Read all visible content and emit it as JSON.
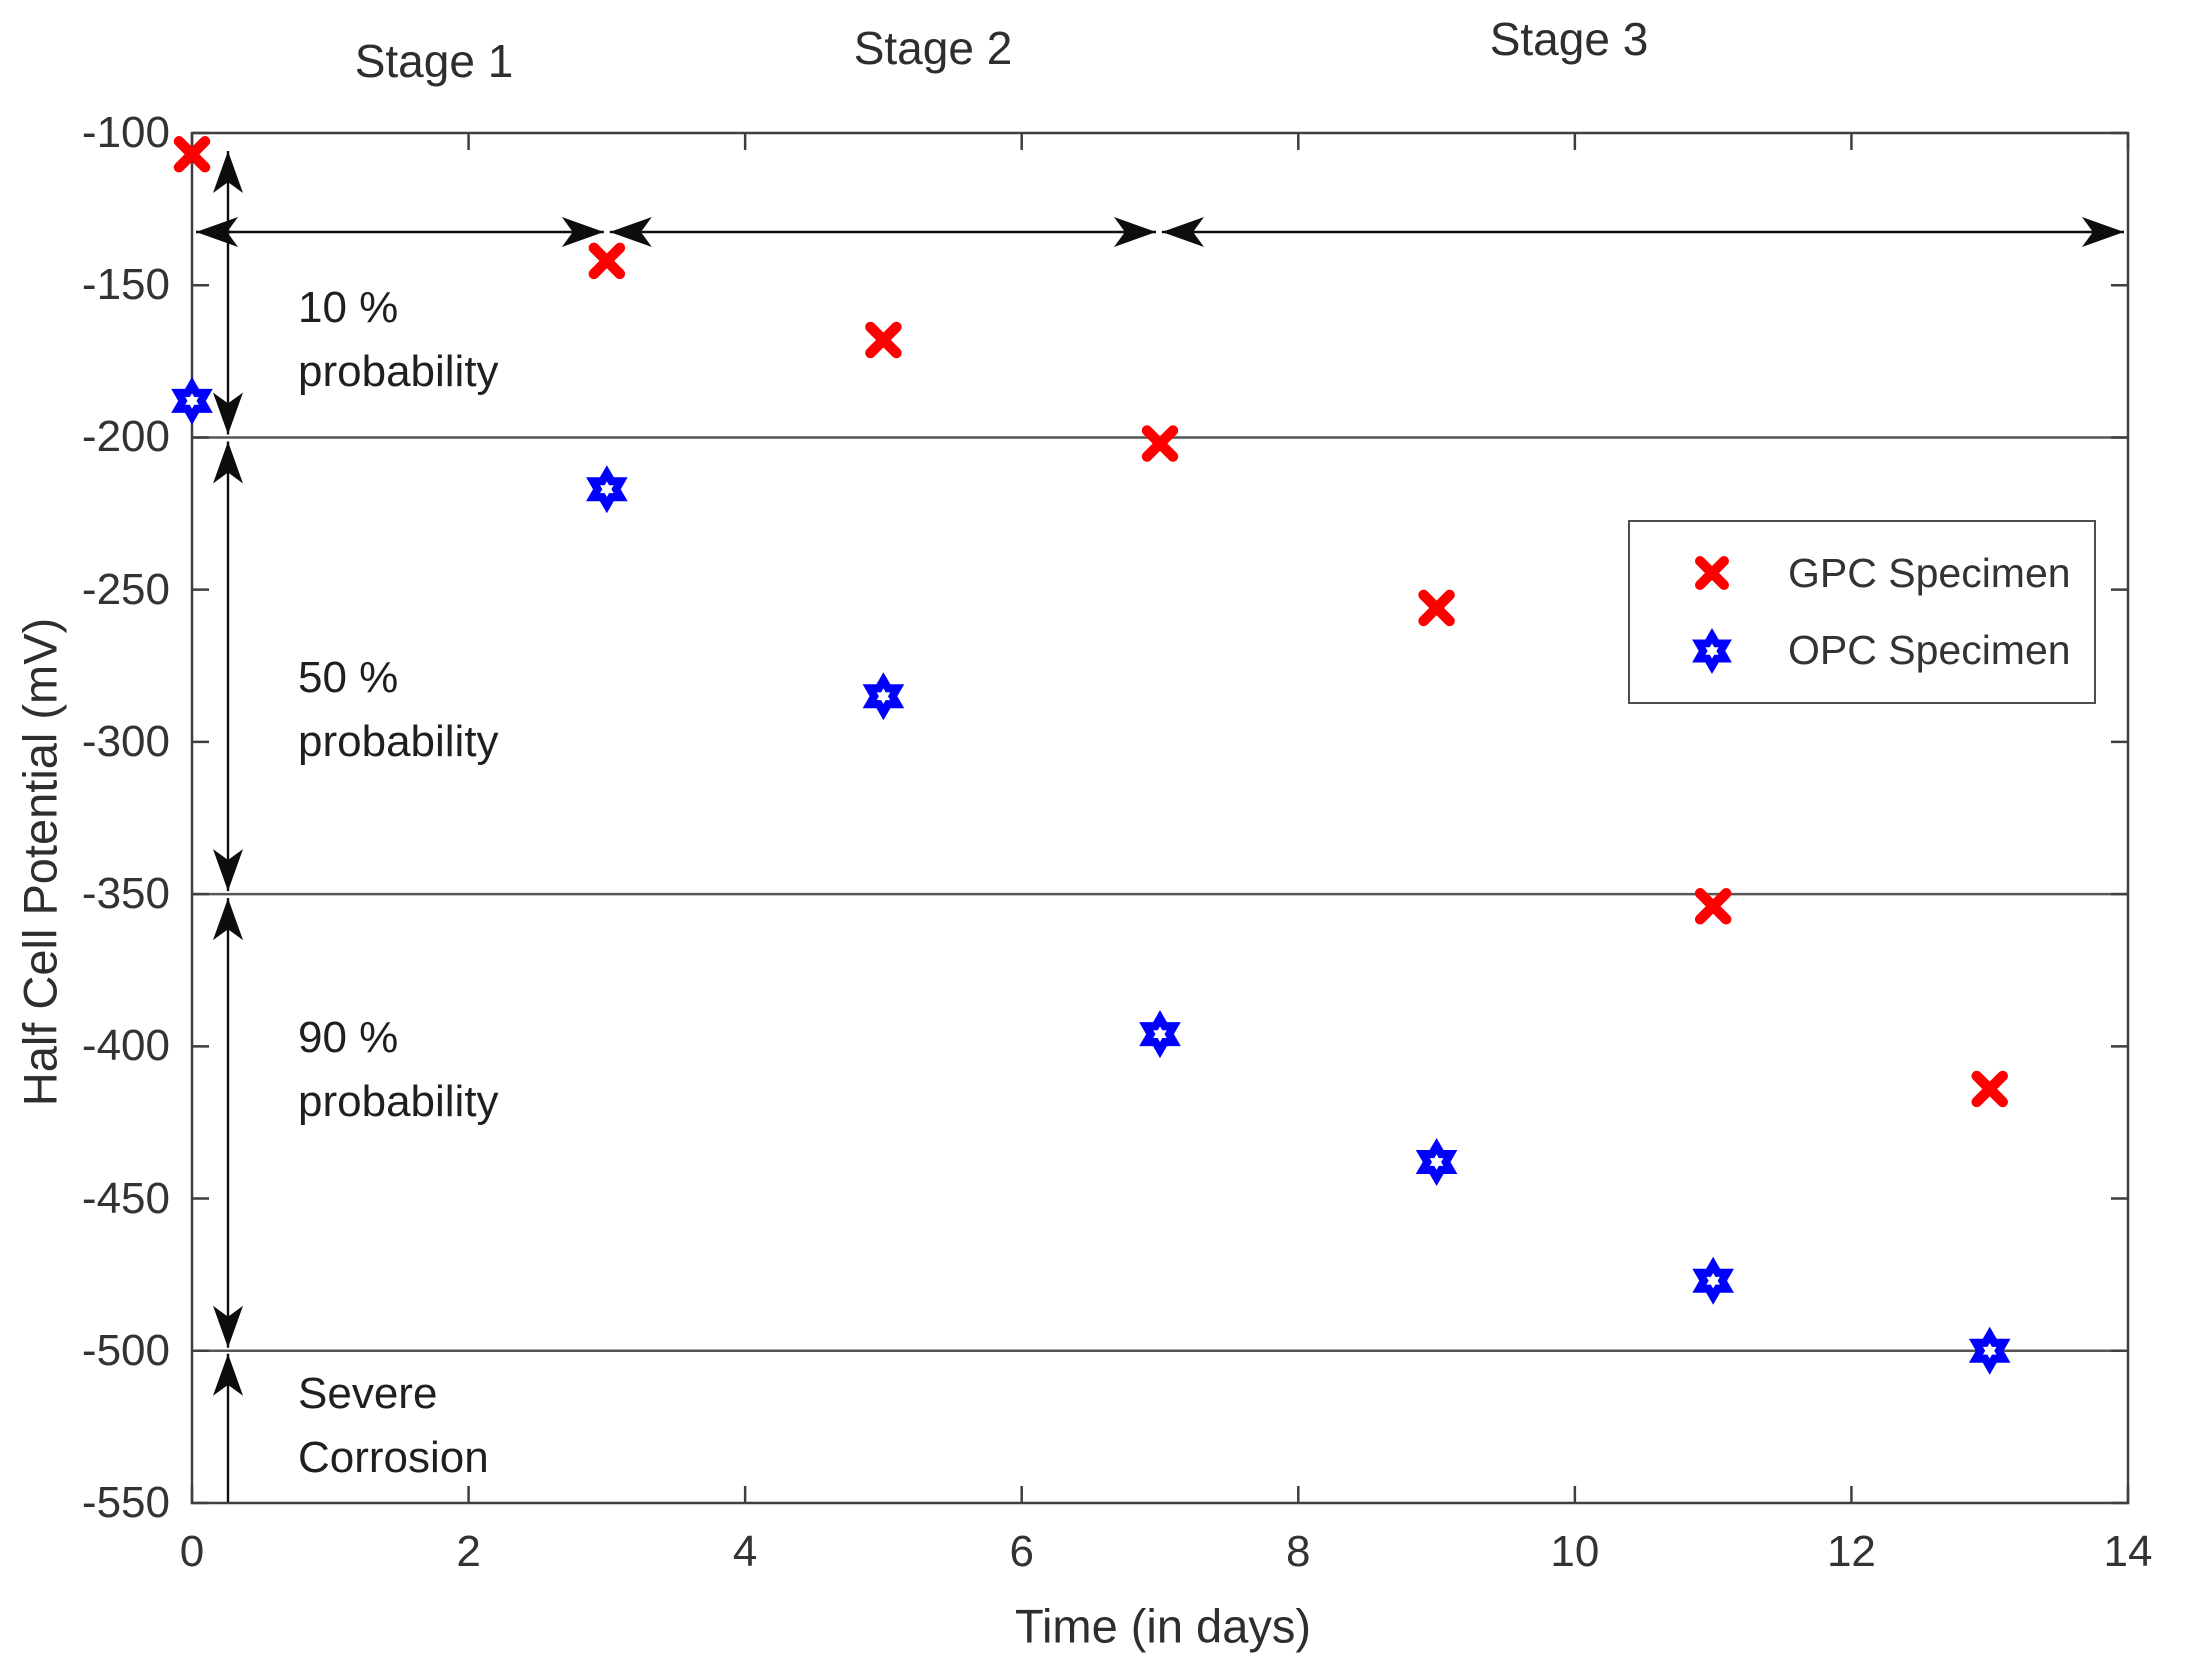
{
  "chart_data": {
    "type": "scatter",
    "xlabel": "Time (in days)",
    "ylabel": "Half Cell Potential (mV)",
    "xlim": [
      0,
      14
    ],
    "ylim": [
      -550,
      -100
    ],
    "x_ticks": [
      0,
      2,
      4,
      6,
      8,
      10,
      12,
      14
    ],
    "y_ticks": [
      -100,
      -150,
      -200,
      -250,
      -300,
      -350,
      -400,
      -450,
      -500,
      -550
    ],
    "grid": false,
    "threshold_lines_mV": [
      -200,
      -350,
      -500
    ],
    "stage_labels": [
      {
        "label": "Stage 1",
        "x_center_days": 1.75,
        "x_range": [
          0,
          3
        ]
      },
      {
        "label": "Stage 2",
        "x_center_days": 5.35,
        "x_range": [
          3,
          7
        ]
      },
      {
        "label": "Stage 3",
        "x_center_days": 9.95,
        "x_range": [
          7,
          14
        ]
      }
    ],
    "annotations": [
      {
        "lines": [
          "10 %",
          "probability"
        ],
        "y_range": [
          -100,
          -200
        ]
      },
      {
        "lines": [
          "50 %",
          "probability"
        ],
        "y_range": [
          -200,
          -350
        ]
      },
      {
        "lines": [
          "90 %",
          "probability"
        ],
        "y_range": [
          -350,
          -500
        ]
      },
      {
        "lines": [
          "Severe",
          "Corrosion"
        ],
        "y_range": [
          -500,
          -550
        ]
      }
    ],
    "series": [
      {
        "name": "GPC Specimen",
        "marker": "x",
        "color": "#FF0000",
        "x": [
          0,
          3,
          5,
          7,
          9,
          11,
          13
        ],
        "y": [
          -107,
          -142,
          -168,
          -202,
          -256,
          -354,
          -414
        ]
      },
      {
        "name": "OPC Specimen",
        "marker": "hexagram",
        "color": "#0000FF",
        "x": [
          0,
          3,
          5,
          7,
          9,
          11,
          13
        ],
        "y": [
          -188,
          -217,
          -285,
          -396,
          -438,
          -477,
          -500
        ]
      }
    ],
    "legend": {
      "position": "right-center",
      "items": [
        "GPC Specimen",
        "OPC Specimen"
      ]
    }
  },
  "icons": {
    "gpc_marker": "x-marker-icon",
    "opc_marker": "hexagram-marker-icon"
  },
  "colors": {
    "axis": "#3f3f3f",
    "threshold_line": "#565656",
    "arrow": "#0d0d0d",
    "background": "#ffffff"
  }
}
